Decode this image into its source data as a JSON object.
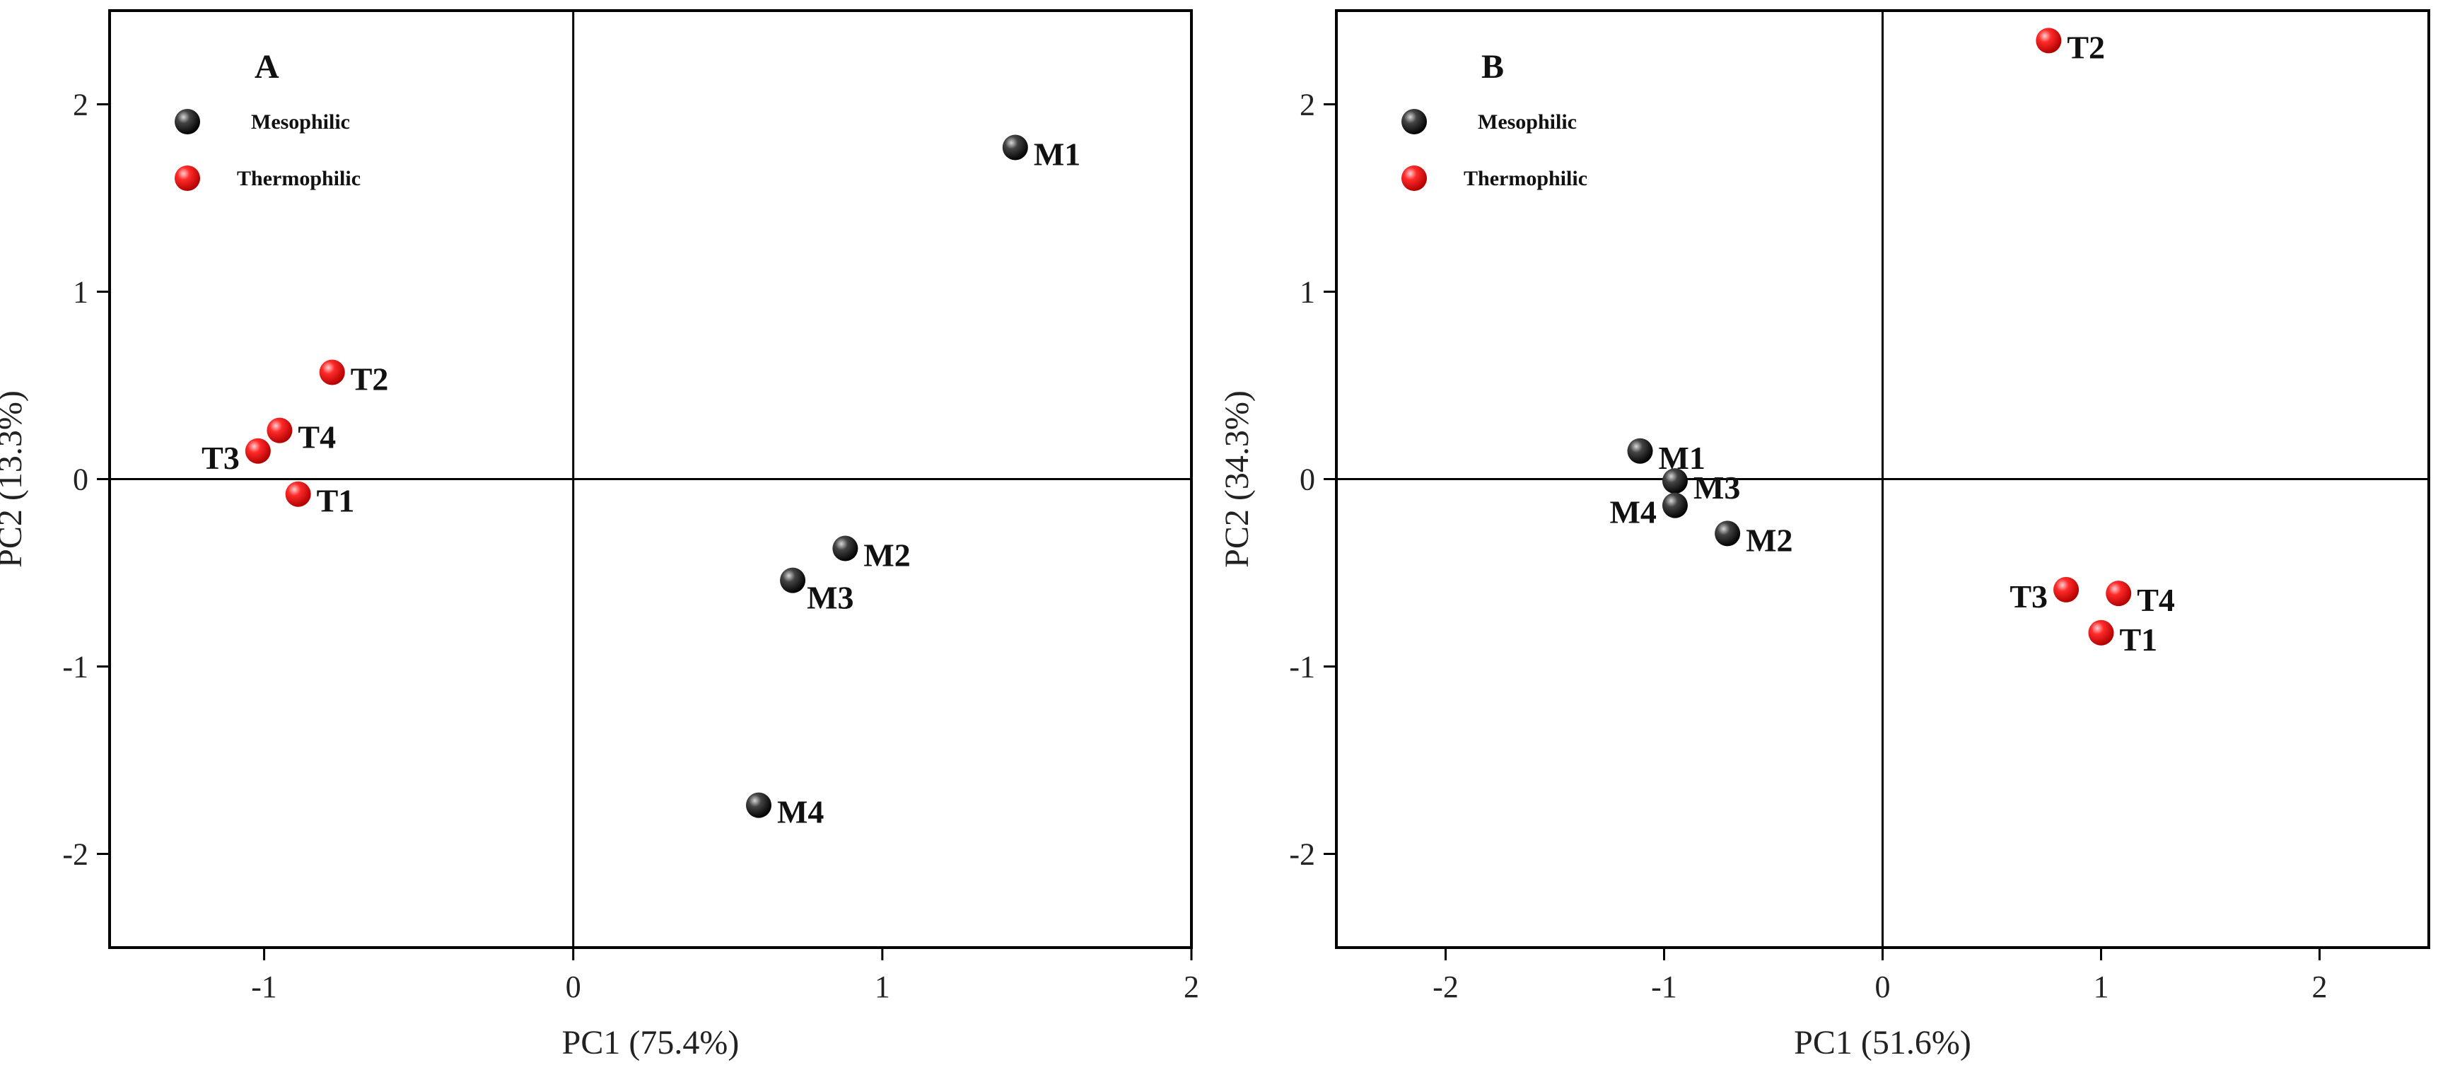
{
  "chart_data": [
    {
      "type": "scatter",
      "panel": "A",
      "xlabel": "PC1 (75.4%)",
      "ylabel": "PC2 (13.3%)",
      "xlim": [
        -1.5,
        2.0
      ],
      "ylim": [
        -2.5,
        2.5
      ],
      "xticks": [
        -1,
        0,
        1,
        2
      ],
      "yticks": [
        -2,
        -1,
        0,
        1,
        2
      ],
      "grid": false,
      "legend_position": "top-left",
      "legend": [
        {
          "name": "Mesophilic",
          "color": "#000000"
        },
        {
          "name": "Thermophilic",
          "color": "#ff0000"
        }
      ],
      "series": [
        {
          "name": "Mesophilic",
          "color": "#000000",
          "points": [
            {
              "label": "M1",
              "x": 1.43,
              "y": 1.77,
              "label_side": "right"
            },
            {
              "label": "M2",
              "x": 0.88,
              "y": -0.37,
              "label_side": "right"
            },
            {
              "label": "M3",
              "x": 0.71,
              "y": -0.54,
              "label_side": "below-right"
            },
            {
              "label": "M4",
              "x": 0.6,
              "y": -1.74,
              "label_side": "right"
            }
          ]
        },
        {
          "name": "Thermophilic",
          "color": "#ff0000",
          "points": [
            {
              "label": "T1",
              "x": -0.89,
              "y": -0.08,
              "label_side": "right"
            },
            {
              "label": "T2",
              "x": -0.78,
              "y": 0.57,
              "label_side": "right"
            },
            {
              "label": "T3",
              "x": -1.02,
              "y": 0.15,
              "label_side": "left"
            },
            {
              "label": "T4",
              "x": -0.95,
              "y": 0.26,
              "label_side": "right"
            }
          ]
        }
      ]
    },
    {
      "type": "scatter",
      "panel": "B",
      "xlabel": "PC1 (51.6%)",
      "ylabel": "PC2 (34.3%)",
      "xlim": [
        -2.5,
        2.5
      ],
      "ylim": [
        -2.5,
        2.5
      ],
      "xticks": [
        -2,
        -1,
        0,
        1,
        2
      ],
      "yticks": [
        -2,
        -1,
        0,
        1,
        2
      ],
      "grid": false,
      "legend_position": "top-left",
      "legend": [
        {
          "name": "Mesophilic",
          "color": "#000000"
        },
        {
          "name": "Thermophilic",
          "color": "#ff0000"
        }
      ],
      "series": [
        {
          "name": "Mesophilic",
          "color": "#000000",
          "points": [
            {
              "label": "M1",
              "x": -1.11,
              "y": 0.15,
              "label_side": "right"
            },
            {
              "label": "M2",
              "x": -0.71,
              "y": -0.29,
              "label_side": "right"
            },
            {
              "label": "M3",
              "x": -0.95,
              "y": -0.01,
              "label_side": "right"
            },
            {
              "label": "M4",
              "x": -0.95,
              "y": -0.14,
              "label_side": "left"
            }
          ]
        },
        {
          "name": "Thermophilic",
          "color": "#ff0000",
          "points": [
            {
              "label": "T1",
              "x": 1.0,
              "y": -0.82,
              "label_side": "right"
            },
            {
              "label": "T2",
              "x": 0.76,
              "y": 2.34,
              "label_side": "right"
            },
            {
              "label": "T3",
              "x": 0.84,
              "y": -0.59,
              "label_side": "left"
            },
            {
              "label": "T4",
              "x": 1.08,
              "y": -0.61,
              "label_side": "right"
            }
          ]
        }
      ]
    }
  ]
}
